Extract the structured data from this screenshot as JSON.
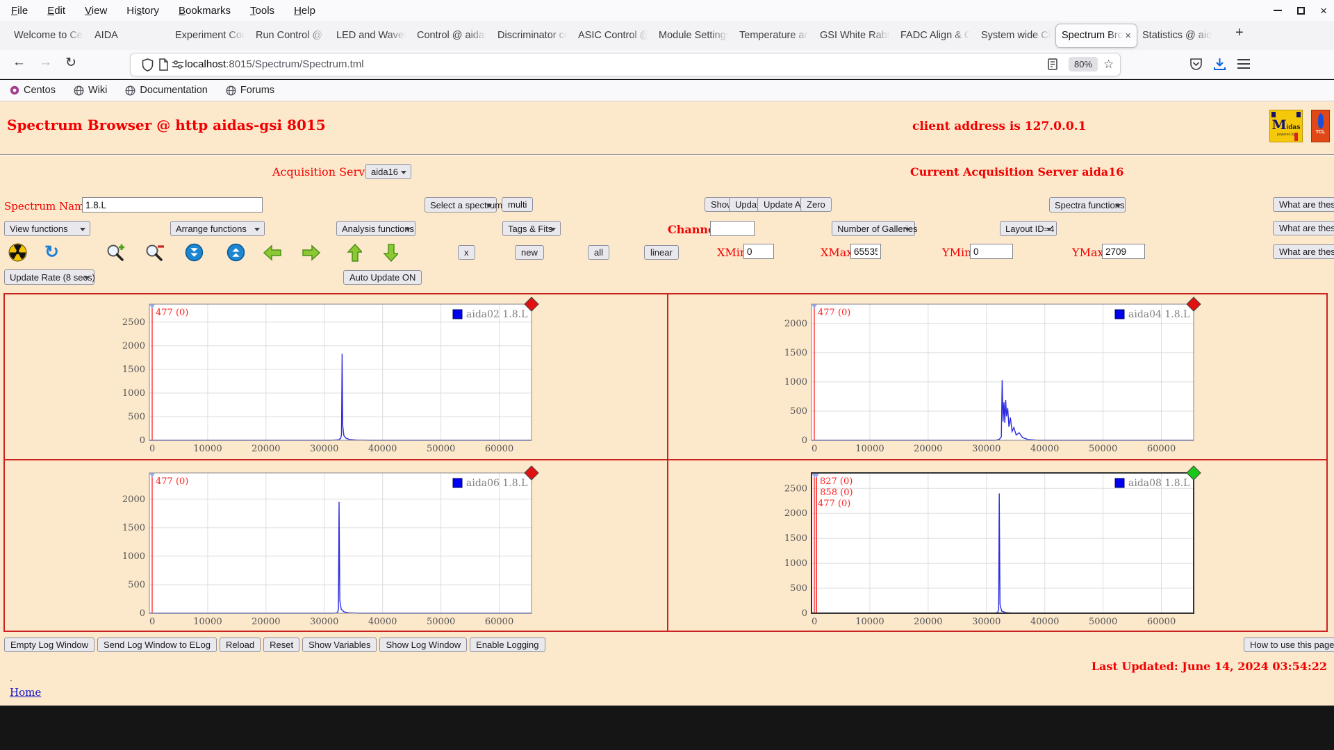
{
  "icons": {
    "back": "←",
    "forward": "→",
    "reload": "↻",
    "star": "☆",
    "new_tab": "+",
    "close_tab": "×",
    "win_close": "×",
    "refresh": "↻",
    "collapse": "⇊",
    "expand": "⇈"
  },
  "window": {
    "menu": [
      {
        "label": "File",
        "u": 0
      },
      {
        "label": "Edit",
        "u": 0
      },
      {
        "label": "View",
        "u": 0
      },
      {
        "label": "History",
        "u": 2
      },
      {
        "label": "Bookmarks",
        "u": 0
      },
      {
        "label": "Tools",
        "u": 0
      },
      {
        "label": "Help",
        "u": 0
      }
    ]
  },
  "tabs": {
    "items": [
      {
        "label": "Welcome to Cen"
      },
      {
        "label": "AIDA"
      },
      {
        "label": "Experiment Con"
      },
      {
        "label": "Run Control @ a"
      },
      {
        "label": "LED and Wavefo"
      },
      {
        "label": "Control @ aidas"
      },
      {
        "label": "Discriminator co"
      },
      {
        "label": "ASIC Control @"
      },
      {
        "label": "Module Settings"
      },
      {
        "label": "Temperature an"
      },
      {
        "label": "GSI White Rabb"
      },
      {
        "label": "FADC Align & C"
      },
      {
        "label": "System wide Ch"
      },
      {
        "label": "Spectrum Bro",
        "active": true
      },
      {
        "label": "Statistics @ aid"
      }
    ]
  },
  "navbar": {
    "url_host": "localhost",
    "url_rest": ":8015/Spectrum/Spectrum.tml",
    "zoom": "80%"
  },
  "bookmarks": [
    {
      "label": "Centos"
    },
    {
      "label": "Wiki"
    },
    {
      "label": "Documentation"
    },
    {
      "label": "Forums"
    }
  ],
  "page": {
    "header": {
      "title": "Spectrum Browser @ http aidas-gsi 8015",
      "client": "client address is 127.0.0.1",
      "midas_text_m": "M",
      "midas_text_rest": "idas",
      "midas_sub": "powered by",
      "tcl_text": "TCL"
    },
    "acquisition": {
      "label": "Acquisition Servers",
      "server": "aida16",
      "current": "Current Acquisition Server aida16"
    },
    "controls": {
      "spectrum_name_label": "Spectrum Name:",
      "spectrum_name_value": "1.8.L",
      "select_spectrum": "Select a spectrum",
      "multi": "multi",
      "show": "Show",
      "update": "Update",
      "update_all": "Update All",
      "zero": "Zero",
      "spectra_functions": "Spectra functions",
      "what_are_these": "What are these?",
      "view_functions": "View functions",
      "arrange_functions": "Arrange functions",
      "analysis_functions": "Analysis functions",
      "tags_fits": "Tags & Fits",
      "channel_label": "Channel:",
      "channel_value": "",
      "galleries": "Number of Galleries",
      "layout": "Layout ID=4",
      "x_btn": "x",
      "new_btn": "new",
      "all_btn": "all",
      "linear_btn": "linear",
      "xmin_label": "XMin",
      "xmin": "0",
      "xmax_label": "XMax",
      "xmax": "65535",
      "ymin_label": "YMin",
      "ymin": "0",
      "ymax_label": "YMax",
      "ymax": "2709",
      "update_rate": "Update Rate (8 secs)",
      "auto_update": "Auto Update ON"
    },
    "footer": {
      "buttons": [
        "Empty Log Window",
        "Send Log Window to ELog",
        "Reload",
        "Reset",
        "Show Variables",
        "Show Log Window",
        "Enable Logging"
      ],
      "help_button": "How to use this page",
      "last_updated": "Last Updated: June 14, 2024 03:54:22",
      "dot": ".",
      "home": "Home"
    }
  },
  "chart_data": [
    {
      "type": "line",
      "name": "aida02 1.8.L",
      "xmax": 65535,
      "ymax": 2880,
      "xticks": [
        0,
        10000,
        20000,
        30000,
        40000,
        50000,
        60000
      ],
      "yticks": [
        0,
        500,
        1000,
        1500,
        2000,
        2500
      ],
      "markers": [
        {
          "x": 477,
          "label": "477 (0)"
        }
      ],
      "diamond": "#e11111",
      "frame": "#999999",
      "selected": false,
      "series": [
        [
          0,
          0
        ],
        [
          31000,
          0
        ],
        [
          32400,
          10
        ],
        [
          32800,
          40
        ],
        [
          32950,
          120
        ],
        [
          33050,
          1830
        ],
        [
          33150,
          320
        ],
        [
          33350,
          100
        ],
        [
          33700,
          45
        ],
        [
          34300,
          18
        ],
        [
          35500,
          6
        ],
        [
          38000,
          0
        ],
        [
          65535,
          0
        ]
      ]
    },
    {
      "type": "line",
      "name": "aida04 1.8.L",
      "xmax": 65535,
      "ymax": 2330,
      "xticks": [
        0,
        10000,
        20000,
        30000,
        40000,
        50000,
        60000
      ],
      "yticks": [
        0,
        500,
        1000,
        1500,
        2000
      ],
      "markers": [
        {
          "x": 477,
          "label": "477 (0)"
        }
      ],
      "diamond": "#e11111",
      "frame": "#999999",
      "selected": false,
      "series": [
        [
          0,
          0
        ],
        [
          31500,
          0
        ],
        [
          32200,
          15
        ],
        [
          32550,
          60
        ],
        [
          32700,
          1030
        ],
        [
          32850,
          320
        ],
        [
          33000,
          650
        ],
        [
          33150,
          300
        ],
        [
          33300,
          690
        ],
        [
          33450,
          410
        ],
        [
          33650,
          550
        ],
        [
          33850,
          230
        ],
        [
          34100,
          390
        ],
        [
          34400,
          150
        ],
        [
          34700,
          220
        ],
        [
          35100,
          90
        ],
        [
          35600,
          130
        ],
        [
          36200,
          45
        ],
        [
          37200,
          12
        ],
        [
          39000,
          0
        ],
        [
          65535,
          0
        ]
      ]
    },
    {
      "type": "line",
      "name": "aida06 1.8.L",
      "xmax": 65535,
      "ymax": 2460,
      "xticks": [
        0,
        10000,
        20000,
        30000,
        40000,
        50000,
        60000
      ],
      "yticks": [
        0,
        500,
        1000,
        1500,
        2000
      ],
      "markers": [
        {
          "x": 477,
          "label": "477 (0)"
        }
      ],
      "diamond": "#e11111",
      "frame": "#999999",
      "selected": false,
      "series": [
        [
          0,
          0
        ],
        [
          31700,
          0
        ],
        [
          32250,
          12
        ],
        [
          32420,
          70
        ],
        [
          32530,
          1950
        ],
        [
          32660,
          220
        ],
        [
          32900,
          70
        ],
        [
          33400,
          22
        ],
        [
          34300,
          7
        ],
        [
          36000,
          0
        ],
        [
          65535,
          0
        ]
      ]
    },
    {
      "type": "line",
      "name": "aida08 1.8.L",
      "xmax": 65535,
      "ymax": 2810,
      "xticks": [
        0,
        10000,
        20000,
        30000,
        40000,
        50000,
        60000
      ],
      "yticks": [
        0,
        500,
        1000,
        1500,
        2000,
        2500
      ],
      "markers": [
        {
          "x": 827,
          "label": "827 (0)"
        },
        {
          "x": 858,
          "label": "858 (0)"
        },
        {
          "x": 477,
          "label": "477 (0)"
        }
      ],
      "diamond": "#19c819",
      "frame": "#333333",
      "selected": true,
      "series": [
        [
          0,
          0
        ],
        [
          31400,
          0
        ],
        [
          31950,
          18
        ],
        [
          32100,
          80
        ],
        [
          32200,
          2400
        ],
        [
          32330,
          180
        ],
        [
          32600,
          45
        ],
        [
          33300,
          12
        ],
        [
          34600,
          0
        ],
        [
          65535,
          0
        ]
      ]
    }
  ]
}
